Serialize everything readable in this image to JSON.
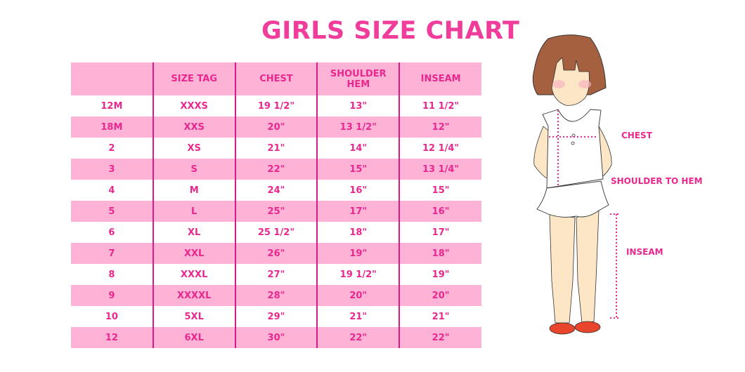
{
  "title": "GIRLS SIZE CHART",
  "table": {
    "headers": [
      "",
      "SIZE TAG",
      "CHEST",
      "SHOULDER HEM",
      "INSEAM"
    ],
    "rows": [
      [
        "12M",
        "XXXS",
        "19 1/2\"",
        "13\"",
        "11 1/2\""
      ],
      [
        "18M",
        "XXS",
        "20\"",
        "13 1/2\"",
        "12\""
      ],
      [
        "2",
        "XS",
        "21\"",
        "14\"",
        "12 1/4\""
      ],
      [
        "3",
        "S",
        "22\"",
        "15\"",
        "13 1/4\""
      ],
      [
        "4",
        "M",
        "24\"",
        "16\"",
        "15\""
      ],
      [
        "5",
        "L",
        "25\"",
        "17\"",
        "16\""
      ],
      [
        "6",
        "XL",
        "25 1/2\"",
        "18\"",
        "17\""
      ],
      [
        "7",
        "XXL",
        "26\"",
        "19\"",
        "18\""
      ],
      [
        "8",
        "XXXL",
        "27\"",
        "19 1/2\"",
        "19\""
      ],
      [
        "9",
        "XXXXL",
        "28\"",
        "20\"",
        "20\""
      ],
      [
        "10",
        "5XL",
        "29\"",
        "21\"",
        "21\""
      ],
      [
        "12",
        "6XL",
        "30\"",
        "22\"",
        "22\""
      ]
    ]
  },
  "figure": {
    "labels": {
      "chest": "CHEST",
      "shoulder_to_hem": "SHOULDER TO HEM",
      "inseam": "INSEAM"
    }
  },
  "colors": {
    "accent": "#e8288e",
    "row_pink": "#fdb2d6",
    "title": "#f03d9c"
  }
}
